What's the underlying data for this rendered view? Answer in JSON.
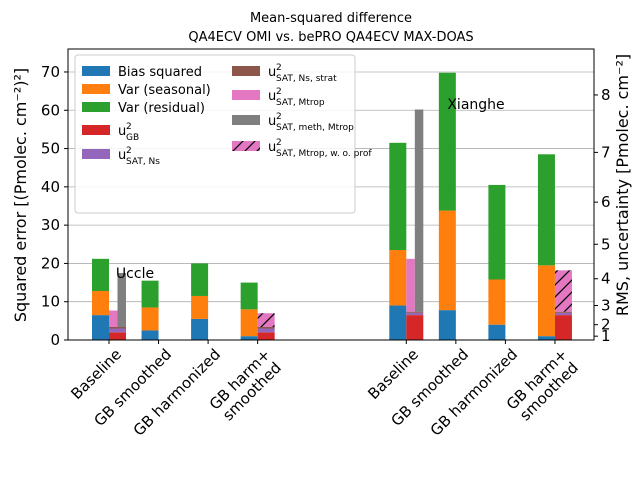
{
  "chart_data": {
    "type": "bar",
    "title": "Mean-squared difference",
    "subtitle": "QA4ECV OMI vs. bePRO QA4ECV MAX-DOAS",
    "y_label": "Squared error [(Pmolec. cm⁻²)²]",
    "y2_label": "RMS, uncertainty [Pmolec. cm⁻²]",
    "y2_scale": "sqrt",
    "categories": [
      "Baseline",
      "GB smoothed",
      "GB harmonized",
      "GB harm+\nsmoothed",
      "Baseline",
      "GB smoothed",
      "GB harmonized",
      "GB harm+\nsmoothed"
    ],
    "annotations": [
      {
        "text": "Uccle"
      },
      {
        "text": "Xianghe"
      }
    ],
    "ylim": [
      0,
      76
    ],
    "yticks": [
      0,
      10,
      20,
      30,
      40,
      50,
      60,
      70
    ],
    "y2lim": [
      0,
      8.718
    ],
    "y2ticks": [
      1,
      2,
      3,
      4,
      5,
      6,
      7,
      8
    ],
    "grid": true,
    "legend": "upper left",
    "series": [
      {
        "name": "Bias squared",
        "color": "#1f77b4",
        "bar": "main",
        "stacked": true,
        "position": "full",
        "values": [
          6.5,
          2.5,
          5.5,
          1.0,
          9.0,
          7.8,
          4.0,
          1.0
        ]
      },
      {
        "name": "Var (seasonal)",
        "color": "#ff7f0e",
        "bar": "main",
        "stacked": true,
        "position": "full",
        "values": [
          6.3,
          6.0,
          6.0,
          7.0,
          14.5,
          26.0,
          11.8,
          18.5
        ]
      },
      {
        "name": "Var (residual)",
        "color": "#2ca02c",
        "bar": "main",
        "stacked": true,
        "position": "full",
        "values": [
          8.4,
          7.0,
          8.5,
          7.0,
          28.0,
          36.0,
          24.7,
          29.0
        ]
      },
      {
        "name": "u",
        "name_sup": "2",
        "name_sub": "GB",
        "color": "#d62728",
        "bar": "uncertainty",
        "stacked": true,
        "position": "full",
        "values": [
          2.0,
          null,
          null,
          2.0,
          6.5,
          null,
          null,
          6.5
        ]
      },
      {
        "name": "u",
        "name_sup": "2",
        "name_sub": "SAT, Ns",
        "color": "#9467bd",
        "bar": "uncertainty",
        "stacked": true,
        "position": "full",
        "values": [
          1.0,
          null,
          null,
          1.0,
          0.6,
          null,
          null,
          0.6
        ]
      },
      {
        "name": "u",
        "name_sup": "2",
        "name_sub": "SAT, Ns, strat",
        "color": "#8c564b",
        "bar": "uncertainty",
        "stacked": true,
        "position": "full",
        "values": [
          0.4,
          null,
          null,
          0.4,
          0.3,
          null,
          null,
          0.3
        ]
      },
      {
        "name": "u",
        "name_sup": "2",
        "name_sub": "SAT, Mtrop",
        "color": "#e377c2",
        "bar": "uncertainty",
        "stacked": false,
        "position": "left-half",
        "values": [
          4.3,
          null,
          null,
          null,
          13.8,
          null,
          null,
          null
        ]
      },
      {
        "name": "u",
        "name_sup": "2",
        "name_sub": "SAT, meth, Mtrop",
        "color": "#7f7f7f",
        "bar": "uncertainty",
        "stacked": false,
        "position": "right-half",
        "values": [
          14.1,
          null,
          null,
          null,
          52.8,
          null,
          null,
          null
        ]
      },
      {
        "name": "u",
        "name_sup": "2",
        "name_sub": "SAT, Mtrop, w. o. prof",
        "color": "#e377c2",
        "hatch": "/",
        "bar": "uncertainty",
        "stacked": false,
        "position": "full",
        "values": [
          null,
          null,
          null,
          3.6,
          null,
          null,
          null,
          10.8
        ]
      }
    ]
  }
}
